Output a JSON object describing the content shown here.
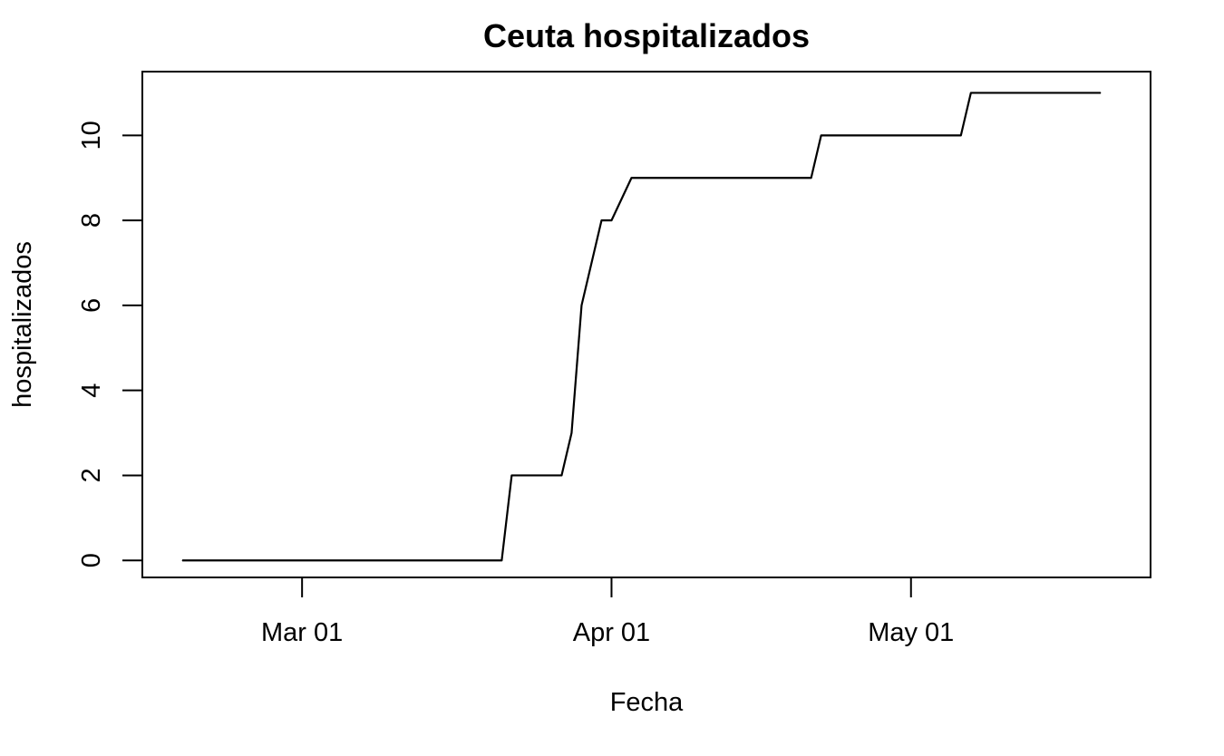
{
  "chart_data": {
    "type": "line",
    "title": "Ceuta hospitalizados",
    "xlabel": "Fecha",
    "ylabel": "hospitalizados",
    "x_ticks": [
      "2020-03-01",
      "2020-04-01",
      "2020-05-01"
    ],
    "x_tick_labels": [
      "Mar 01",
      "Apr 01",
      "May 01"
    ],
    "y_ticks": [
      0,
      2,
      4,
      6,
      8,
      10
    ],
    "y_tick_labels": [
      "0",
      "2",
      "4",
      "6",
      "8",
      "10"
    ],
    "xlim": [
      "2020-02-14",
      "2020-05-25"
    ],
    "ylim": [
      -0.4,
      11.5
    ],
    "grid": false,
    "series": [
      {
        "color": "#000000",
        "points": [
          {
            "x": "2020-02-18",
            "y": 0
          },
          {
            "x": "2020-03-21",
            "y": 0
          },
          {
            "x": "2020-03-22",
            "y": 2
          },
          {
            "x": "2020-03-27",
            "y": 2
          },
          {
            "x": "2020-03-28",
            "y": 3
          },
          {
            "x": "2020-03-29",
            "y": 6
          },
          {
            "x": "2020-03-31",
            "y": 8
          },
          {
            "x": "2020-04-01",
            "y": 8
          },
          {
            "x": "2020-04-03",
            "y": 9
          },
          {
            "x": "2020-04-21",
            "y": 9
          },
          {
            "x": "2020-04-22",
            "y": 10
          },
          {
            "x": "2020-05-06",
            "y": 10
          },
          {
            "x": "2020-05-07",
            "y": 11
          },
          {
            "x": "2020-05-20",
            "y": 11
          }
        ]
      }
    ]
  }
}
